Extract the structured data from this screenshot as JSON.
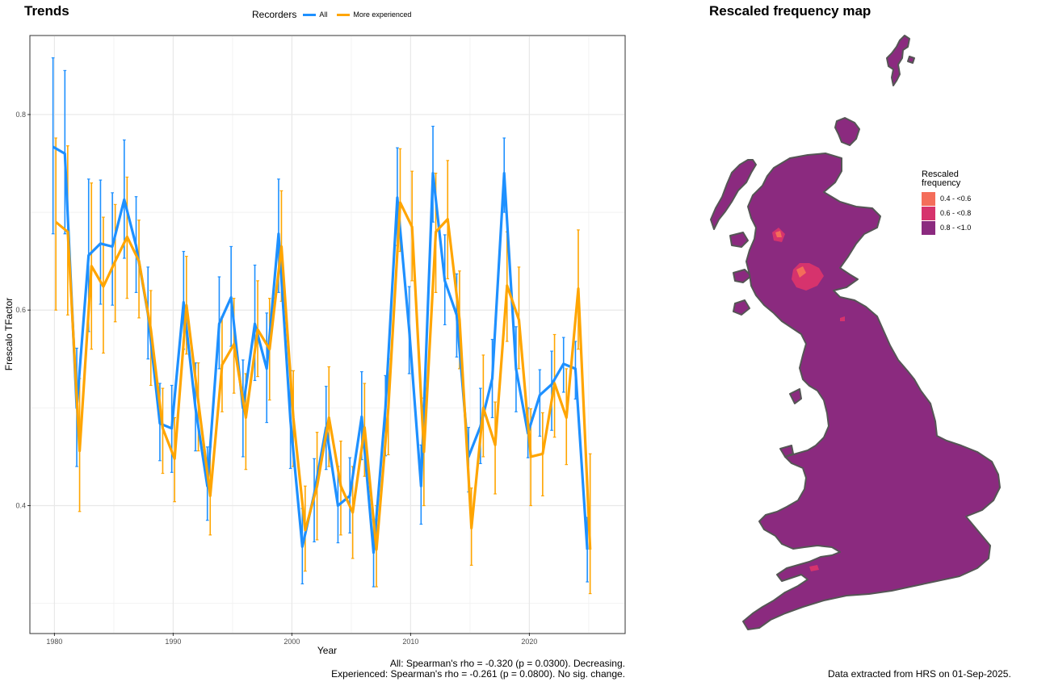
{
  "panels": {
    "trends_title": "Trends",
    "map_title": "Rescaled frequency map"
  },
  "legend": {
    "title": "Recorders",
    "items": [
      {
        "label": "All",
        "color": "#1E90FF"
      },
      {
        "label": "More experienced",
        "color": "#FFA500"
      }
    ]
  },
  "chart_data": {
    "type": "line",
    "xlabel": "Year",
    "ylabel": "Frescalo TFactor",
    "xlim": [
      1978,
      2028
    ],
    "ylim": [
      0.27,
      0.88
    ],
    "x_ticks": [
      1980,
      1990,
      2000,
      2010,
      2020
    ],
    "y_ticks": [
      0.4,
      0.6,
      0.8
    ],
    "grid": true,
    "legend_position": "top",
    "series": [
      {
        "name": "All",
        "color": "#1E90FF",
        "x": [
          1980,
          1981,
          1982,
          1983,
          1984,
          1985,
          1986,
          1987,
          1988,
          1989,
          1990,
          1991,
          1992,
          1993,
          1994,
          1995,
          1996,
          1997,
          1998,
          1999,
          2000,
          2001,
          2002,
          2003,
          2004,
          2005,
          2006,
          2007,
          2008,
          2009,
          2010,
          2011,
          2012,
          2013,
          2014,
          2015,
          2016,
          2017,
          2018,
          2019,
          2020,
          2021,
          2022,
          2023,
          2024,
          2025
        ],
        "y": [
          0.767,
          0.76,
          0.5,
          0.656,
          0.668,
          0.665,
          0.713,
          0.666,
          0.596,
          0.484,
          0.479,
          0.608,
          0.5,
          0.42,
          0.586,
          0.613,
          0.5,
          0.586,
          0.54,
          0.678,
          0.487,
          0.358,
          0.412,
          0.48,
          0.4,
          0.41,
          0.491,
          0.352,
          0.5,
          0.715,
          0.58,
          0.42,
          0.74,
          0.63,
          0.595,
          0.45,
          0.481,
          0.53,
          0.74,
          0.54,
          0.474,
          0.513,
          0.524,
          0.545,
          0.54,
          0.355
        ],
        "lower": [
          0.678,
          0.678,
          0.44,
          0.578,
          0.606,
          0.605,
          0.653,
          0.618,
          0.55,
          0.446,
          0.434,
          0.56,
          0.456,
          0.385,
          0.54,
          0.563,
          0.45,
          0.528,
          0.485,
          0.618,
          0.438,
          0.32,
          0.363,
          0.437,
          0.362,
          0.372,
          0.447,
          0.317,
          0.451,
          0.666,
          0.535,
          0.381,
          0.69,
          0.585,
          0.552,
          0.414,
          0.443,
          0.49,
          0.7,
          0.496,
          0.449,
          0.471,
          0.477,
          0.516,
          0.509,
          0.322
        ],
        "upper": [
          0.858,
          0.845,
          0.561,
          0.734,
          0.733,
          0.72,
          0.774,
          0.716,
          0.644,
          0.525,
          0.523,
          0.66,
          0.546,
          0.46,
          0.634,
          0.665,
          0.549,
          0.646,
          0.597,
          0.734,
          0.538,
          0.397,
          0.448,
          0.522,
          0.44,
          0.449,
          0.537,
          0.386,
          0.533,
          0.766,
          0.624,
          0.462,
          0.788,
          0.677,
          0.637,
          0.48,
          0.52,
          0.57,
          0.776,
          0.583,
          0.5,
          0.539,
          0.558,
          0.572,
          0.568,
          0.388
        ]
      },
      {
        "name": "More experienced",
        "color": "#FFA500",
        "x": [
          1980,
          1981,
          1982,
          1983,
          1984,
          1985,
          1986,
          1987,
          1988,
          1989,
          1990,
          1991,
          1992,
          1993,
          1994,
          1995,
          1996,
          1997,
          1998,
          1999,
          2000,
          2001,
          2002,
          2003,
          2004,
          2005,
          2006,
          2007,
          2008,
          2009,
          2010,
          2011,
          2012,
          2013,
          2014,
          2015,
          2016,
          2017,
          2018,
          2019,
          2020,
          2021,
          2022,
          2023,
          2024,
          2025
        ],
        "y": [
          0.69,
          0.68,
          0.456,
          0.645,
          0.624,
          0.65,
          0.675,
          0.65,
          0.58,
          0.479,
          0.448,
          0.605,
          0.506,
          0.41,
          0.544,
          0.565,
          0.49,
          0.58,
          0.56,
          0.665,
          0.49,
          0.375,
          0.42,
          0.49,
          0.42,
          0.393,
          0.48,
          0.355,
          0.5,
          0.71,
          0.685,
          0.455,
          0.68,
          0.693,
          0.59,
          0.377,
          0.5,
          0.462,
          0.625,
          0.59,
          0.45,
          0.453,
          0.525,
          0.49,
          0.622,
          0.355
        ],
        "lower": [
          0.6,
          0.595,
          0.394,
          0.56,
          0.556,
          0.588,
          0.612,
          0.592,
          0.523,
          0.433,
          0.404,
          0.555,
          0.456,
          0.37,
          0.496,
          0.515,
          0.437,
          0.532,
          0.508,
          0.609,
          0.44,
          0.333,
          0.365,
          0.44,
          0.37,
          0.346,
          0.43,
          0.317,
          0.452,
          0.66,
          0.63,
          0.4,
          0.618,
          0.632,
          0.54,
          0.339,
          0.45,
          0.412,
          0.568,
          0.54,
          0.4,
          0.41,
          0.47,
          0.442,
          0.56,
          0.31
        ],
        "upper": [
          0.776,
          0.768,
          0.53,
          0.73,
          0.695,
          0.708,
          0.736,
          0.692,
          0.62,
          0.52,
          0.49,
          0.655,
          0.546,
          0.46,
          0.593,
          0.612,
          0.535,
          0.63,
          0.612,
          0.722,
          0.538,
          0.42,
          0.475,
          0.542,
          0.466,
          0.44,
          0.525,
          0.4,
          0.55,
          0.765,
          0.742,
          0.51,
          0.74,
          0.753,
          0.64,
          0.418,
          0.554,
          0.506,
          0.68,
          0.644,
          0.499,
          0.495,
          0.575,
          0.54,
          0.682,
          0.453
        ]
      }
    ]
  },
  "captions": {
    "stats_line1": "All: Spearman's rho = -0.320 (p = 0.0300). Decreasing.",
    "stats_line2": "Experienced: Spearman's rho = -0.261 (p = 0.0800). No sig. change.",
    "data_source": "Data extracted from HRS on 01-Sep-2025."
  },
  "map": {
    "land_color": "#8B2A7F",
    "outline_color": "#555555",
    "legend": {
      "title_line1": "Rescaled",
      "title_line2": "frequency",
      "items": [
        {
          "label": "0.4 - <0.6",
          "color": "#F46D5A"
        },
        {
          "label": "0.6 - <0.8",
          "color": "#D6336D"
        },
        {
          "label": "0.8 - <1.0",
          "color": "#8B2A7F"
        }
      ]
    }
  }
}
